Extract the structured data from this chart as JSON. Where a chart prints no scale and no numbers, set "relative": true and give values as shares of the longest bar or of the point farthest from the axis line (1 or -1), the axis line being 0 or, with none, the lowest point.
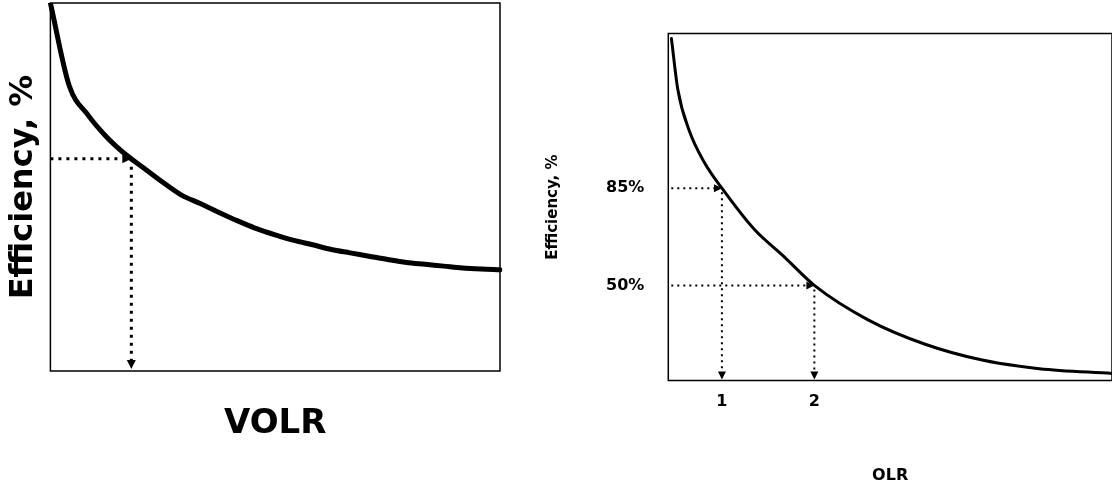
{
  "chart_data": [
    {
      "type": "line",
      "relative": true,
      "xlabel": "VOLR",
      "ylabel": "Efficiency, %",
      "marker": "none",
      "categories": [
        null,
        null,
        null,
        null,
        null,
        null,
        null,
        null,
        null,
        null,
        null,
        null,
        null,
        null,
        null,
        null,
        null,
        null,
        null,
        null,
        null,
        null,
        null,
        null,
        null
      ],
      "series": [
        {
          "color": "#000000",
          "values": [
            1.0,
            0.776,
            0.696,
            0.636,
            0.589,
            0.551,
            0.513,
            0.478,
            0.455,
            0.431,
            0.408,
            0.387,
            0.37,
            0.355,
            0.343,
            0.33,
            0.321,
            0.312,
            0.303,
            0.295,
            0.29,
            0.285,
            0.28,
            0.277,
            0.275
          ]
        }
      ]
    },
    {
      "type": "line",
      "xlabel": "OLR",
      "ylabel": "Efficiency, %",
      "marker": "none",
      "xlim": [
        0.42,
        5.22
      ],
      "ylim": [
        15.7,
        140.7
      ],
      "xticks": [
        1,
        2
      ],
      "yticks": [
        {
          "value": 85,
          "label": "85%"
        },
        {
          "value": 50,
          "label": "50%"
        }
      ],
      "series": [
        {
          "color": "#000000",
          "x": [
            0.454,
            0.523,
            0.648,
            0.812,
            1,
            1.347,
            1.677,
            2,
            2.581,
            3.199,
            3.816,
            4.433,
            5.22
          ],
          "values": [
            138.9,
            120.6,
            105.6,
            94.2,
            85,
            70.3,
            60.2,
            50,
            37.6,
            28.8,
            23.1,
            20.0,
            18.3
          ]
        }
      ]
    }
  ]
}
